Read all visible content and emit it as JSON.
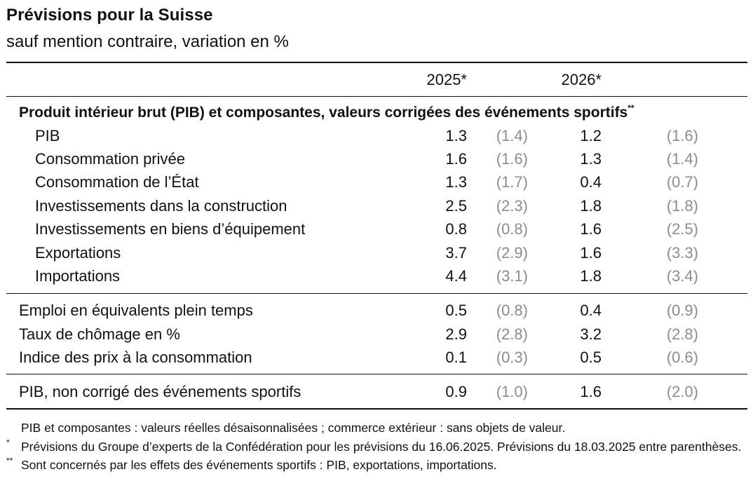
{
  "title": "Prévisions pour la Suisse",
  "subtitle": "sauf mention contraire, variation en %",
  "years": [
    "2025*",
    "2026*"
  ],
  "section_title": "Produit intérieur brut (PIB) et composantes, valeurs corrigées des événements sportifs",
  "section_mark": "**",
  "gdp_rows": [
    {
      "label": "PIB",
      "v2025": "1.3",
      "p2025": "(1.4)",
      "v2026": "1.2",
      "p2026": "(1.6)"
    },
    {
      "label": "Consommation privée",
      "v2025": "1.6",
      "p2025": "(1.6)",
      "v2026": "1.3",
      "p2026": "(1.4)"
    },
    {
      "label": "Consommation de l’État",
      "v2025": "1.3",
      "p2025": "(1.7)",
      "v2026": "0.4",
      "p2026": "(0.7)"
    },
    {
      "label": "Investissements dans la construction",
      "v2025": "2.5",
      "p2025": "(2.3)",
      "v2026": "1.8",
      "p2026": "(1.8)"
    },
    {
      "label": "Investissements en biens d’équipement",
      "v2025": "0.8",
      "p2025": "(0.8)",
      "v2026": "1.6",
      "p2026": "(2.5)"
    },
    {
      "label": "Exportations",
      "v2025": "3.7",
      "p2025": "(2.9)",
      "v2026": "1.6",
      "p2026": "(3.3)"
    },
    {
      "label": "Importations",
      "v2025": "4.4",
      "p2025": "(3.1)",
      "v2026": "1.8",
      "p2026": "(3.4)"
    }
  ],
  "labour_rows": [
    {
      "label": "Emploi en équivalents plein temps",
      "v2025": "0.5",
      "p2025": "(0.8)",
      "v2026": "0.4",
      "p2026": "(0.9)"
    },
    {
      "label": "Taux de chômage en %",
      "v2025": "2.9",
      "p2025": "(2.8)",
      "v2026": "3.2",
      "p2026": "(2.8)"
    },
    {
      "label": "Indice des prix à la consommation",
      "v2025": "0.1",
      "p2025": "(0.3)",
      "v2026": "0.5",
      "p2026": "(0.6)"
    }
  ],
  "unadjusted_row": {
    "label": "PIB, non corrigé des événements sportifs",
    "v2025": "0.9",
    "p2025": "(1.0)",
    "v2026": "1.6",
    "p2026": "(2.0)"
  },
  "notes": {
    "general": "PIB et composantes : valeurs réelles désaisonnalisées ; commerce extérieur : sans objets de valeur.",
    "star_mark": "*",
    "star_text": "Prévisions du Groupe d’experts de la Confédération pour les prévisions du 16.06.2025. Prévisions du 18.03.2025 entre parenthèses.",
    "double_star_mark": "**",
    "double_star_text": "Sont concernés par les effets des événements sportifs : PIB, exportations, importations."
  },
  "colors": {
    "text": "#111111",
    "previous_forecast": "#8c8c8c",
    "rule": "#111111"
  }
}
